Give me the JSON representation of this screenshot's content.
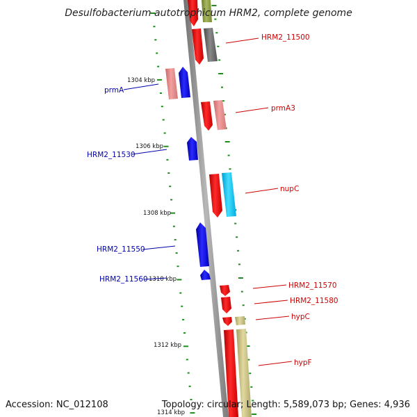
{
  "title": "Desulfobacterium autotrophicum HRM2, complete genome",
  "footer": {
    "accession": "Accession: NC_012108",
    "summary": "Topology: circular; Length: 5,589,073 bp; Genes: 4,936"
  },
  "colors": {
    "backbone": "#8a8a8a",
    "tick": "#1e8c1e",
    "label_forward": "#cc0000",
    "label_reverse": "#0000aa",
    "cds_forward": "#ff0000",
    "cds_reverse": "#0000ee"
  },
  "scale_labels": [
    "1304 kbp",
    "1306 kbp",
    "1308 kbp",
    "1310 kbp",
    "1312 kbp",
    "1314 kbp"
  ],
  "genes": {
    "forward": [
      "HRM2_11500",
      "prmA3",
      "nupC",
      "HRM2_11570",
      "HRM2_11580",
      "hypC",
      "hypF"
    ],
    "reverse": [
      "prmA",
      "HRM2_11530",
      "HRM2_11550",
      "HRM2_11560"
    ]
  }
}
